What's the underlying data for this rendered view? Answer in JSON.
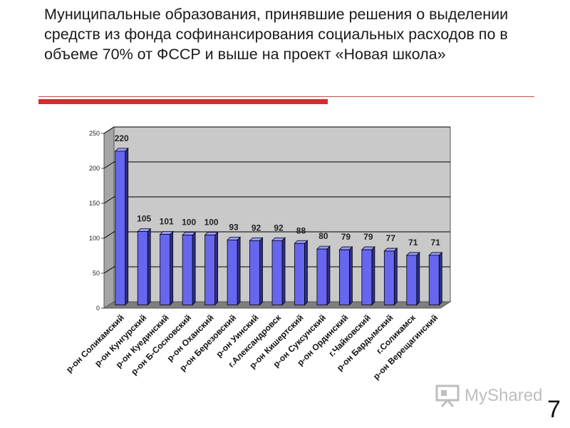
{
  "slide": {
    "title": "Муниципальные образования, принявшие решения о выделении средств из фонда софинансирования социальных расходов по  в объеме 70% от ФССР и выше на проект «Новая школа»",
    "number": "7",
    "watermark": "MyShared",
    "watermark_icon": "presentation-board-icon",
    "accent_color": "#d92b2b"
  },
  "chart_data": {
    "type": "bar",
    "title": "",
    "xlabel": "",
    "ylabel": "",
    "ylim": [
      0,
      250
    ],
    "yticks": [
      "0",
      "50",
      "100",
      "150",
      "200",
      "250"
    ],
    "grid": true,
    "legend": "none",
    "bar_color": "#6666ee",
    "categories": [
      "р-он Соликамский",
      "р-он Кунгурский",
      "р-он Куединский",
      "р-он Б-Сосновский",
      "р-он Оханский",
      "р-он Березовский",
      "р-он Уинский",
      "г.Александровск",
      "р-он Кишертский",
      "р-он Суксунский",
      "р-он Ординский",
      "г.Чайковский",
      "р-он Бардымский",
      "г.Соликамск",
      "р-он Верещагинский"
    ],
    "values": [
      220,
      105,
      101,
      100,
      100,
      93,
      92,
      92,
      88,
      80,
      79,
      79,
      77,
      71,
      71
    ],
    "value_labels": [
      "220",
      "105",
      "101",
      "100",
      "100",
      "93",
      "92",
      "92",
      "88",
      "80",
      "79",
      "79",
      "77",
      "71",
      "71"
    ]
  }
}
